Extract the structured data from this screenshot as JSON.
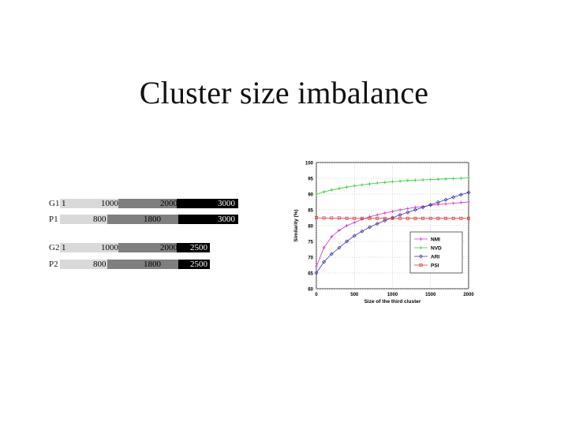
{
  "title": "Cluster size imbalance",
  "partitions": [
    {
      "label": "G1",
      "first": "1",
      "b1": "1000",
      "b2": "2000",
      "b3": "3000"
    },
    {
      "label": "P1",
      "first": "",
      "b1": "800",
      "b2": "1800",
      "b3": "3000"
    },
    {
      "label": "G2",
      "first": "1",
      "b1": "1000",
      "b2": "2000",
      "b3": "2500"
    },
    {
      "label": "P2",
      "first": "",
      "b1": "800",
      "b2": "1800",
      "b3": "2500"
    }
  ],
  "colors": {
    "seg1": "#d9d9d9",
    "seg2": "#7f7f7f",
    "seg3": "#000000",
    "nmi": "#cc33cc",
    "nvd": "#33cc33",
    "ari": "#3333aa",
    "psi": "#dd3333"
  },
  "chart_data": {
    "type": "line",
    "xlabel": "Size of the third cluster",
    "ylabel": "Similarity (%)",
    "xlim": [
      0,
      2000
    ],
    "ylim": [
      60,
      100
    ],
    "xticks": [
      0,
      500,
      1000,
      1500,
      2000
    ],
    "yticks": [
      60,
      65,
      70,
      75,
      80,
      85,
      90,
      95,
      100
    ],
    "grid": true,
    "legend_position": "bottom-right",
    "x": [
      0,
      100,
      200,
      300,
      400,
      500,
      600,
      700,
      800,
      900,
      1000,
      1100,
      1200,
      1300,
      1400,
      1500,
      1600,
      1700,
      1800,
      1900,
      2000
    ],
    "series": [
      {
        "name": "NMI",
        "marker": "plus",
        "values": [
          67,
          73,
          76.5,
          78.5,
          80,
          81,
          82,
          82.8,
          83.4,
          84,
          84.5,
          85,
          85.4,
          85.8,
          86.1,
          86.4,
          86.7,
          86.9,
          87.1,
          87.3,
          87.5
        ]
      },
      {
        "name": "NVD",
        "marker": "plus",
        "values": [
          90,
          90.7,
          91.3,
          91.8,
          92.2,
          92.6,
          92.9,
          93.2,
          93.5,
          93.7,
          93.9,
          94.1,
          94.3,
          94.4,
          94.5,
          94.6,
          94.7,
          94.8,
          94.9,
          95,
          95.1
        ]
      },
      {
        "name": "ARI",
        "marker": "diamond",
        "values": [
          65,
          68.5,
          71,
          73,
          75,
          76.8,
          78.2,
          79.5,
          80.6,
          81.6,
          82.5,
          83.4,
          84.2,
          85,
          85.8,
          86.6,
          87.4,
          88.2,
          89,
          89.8,
          90.5
        ]
      },
      {
        "name": "PSI",
        "marker": "square",
        "values": [
          82.5,
          82.4,
          82.4,
          82.4,
          82.3,
          82.3,
          82.3,
          82.3,
          82.3,
          82.3,
          82.3,
          82.3,
          82.3,
          82.3,
          82.3,
          82.3,
          82.3,
          82.3,
          82.3,
          82.3,
          82.3
        ]
      }
    ]
  }
}
